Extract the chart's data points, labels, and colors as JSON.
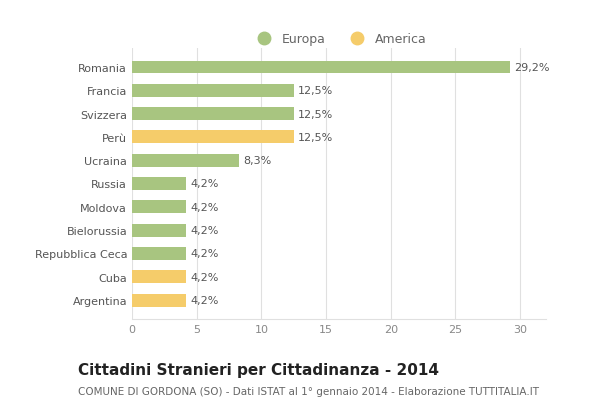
{
  "categories": [
    "Romania",
    "Francia",
    "Svizzera",
    "Perù",
    "Ucraina",
    "Russia",
    "Moldova",
    "Bielorussia",
    "Repubblica Ceca",
    "Cuba",
    "Argentina"
  ],
  "values": [
    29.2,
    12.5,
    12.5,
    12.5,
    8.3,
    4.2,
    4.2,
    4.2,
    4.2,
    4.2,
    4.2
  ],
  "labels": [
    "29,2%",
    "12,5%",
    "12,5%",
    "12,5%",
    "8,3%",
    "4,2%",
    "4,2%",
    "4,2%",
    "4,2%",
    "4,2%",
    "4,2%"
  ],
  "continents": [
    "Europa",
    "Europa",
    "Europa",
    "America",
    "Europa",
    "Europa",
    "Europa",
    "Europa",
    "Europa",
    "America",
    "America"
  ],
  "color_europa": "#a8c580",
  "color_america": "#f5cc6a",
  "title": "Cittadini Stranieri per Cittadinanza - 2014",
  "subtitle": "COMUNE DI GORDONA (SO) - Dati ISTAT al 1° gennaio 2014 - Elaborazione TUTTITALIA.IT",
  "legend_europa": "Europa",
  "legend_america": "America",
  "xlim": [
    0,
    32
  ],
  "xticks": [
    0,
    5,
    10,
    15,
    20,
    25,
    30
  ],
  "background_color": "#ffffff",
  "grid_color": "#e0e0e0",
  "bar_height": 0.55,
  "title_fontsize": 11,
  "subtitle_fontsize": 7.5,
  "label_fontsize": 8,
  "tick_fontsize": 8,
  "legend_fontsize": 9
}
